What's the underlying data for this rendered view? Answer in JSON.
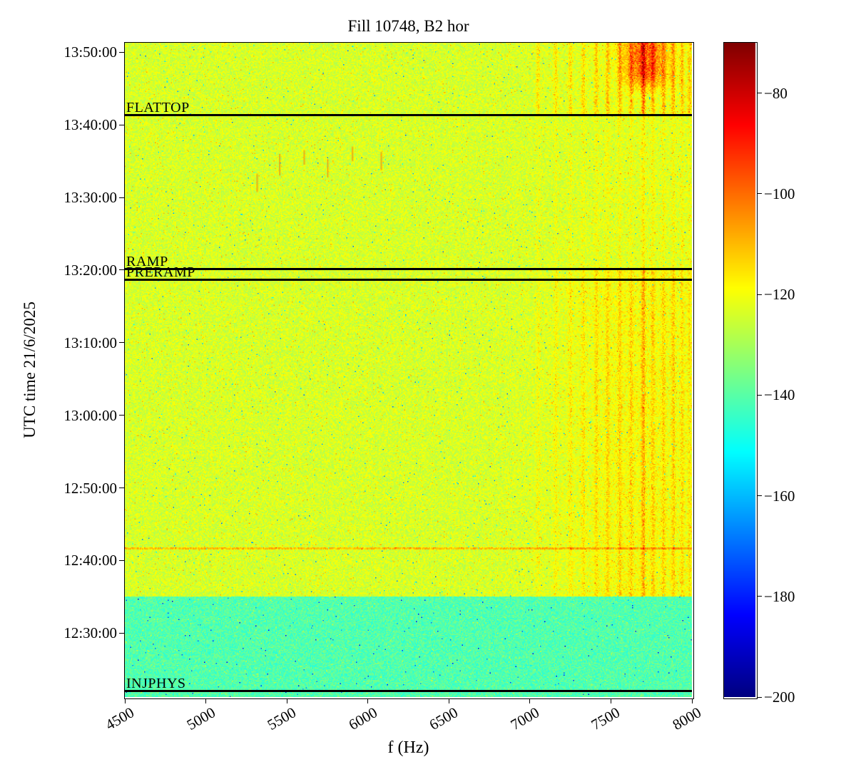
{
  "chart_data": {
    "type": "heatmap",
    "variant": "spectrogram",
    "title": "Fill 10748, B2 hor",
    "xlabel": "f (Hz)",
    "ylabel": "UTC time 21/6/2025",
    "x_range_hz": [
      4500,
      8000
    ],
    "x_ticks_hz": [
      4500,
      5000,
      5500,
      6000,
      6500,
      7000,
      7500,
      8000
    ],
    "time_top": "13:51:18",
    "time_bottom": "12:21:12",
    "y_ticks": [
      "13:50:00",
      "13:40:00",
      "13:30:00",
      "13:20:00",
      "13:10:00",
      "13:00:00",
      "12:50:00",
      "12:40:00",
      "12:30:00"
    ],
    "colorbar": {
      "colormap": "jet",
      "vmin": -200,
      "vmax": -70,
      "ticks": [
        -80,
        -100,
        -120,
        -140,
        -160,
        -180,
        -200
      ],
      "tick_labels": [
        "−80",
        "−100",
        "−120",
        "−140",
        "−160",
        "−180",
        "−200"
      ]
    },
    "beam_modes": [
      {
        "label": "FLATTOP",
        "time": "13:41:18"
      },
      {
        "label": "RAMP",
        "time": "13:20:06"
      },
      {
        "label": "PRERAMP",
        "time": "13:18:42"
      },
      {
        "label": "INJPHYS",
        "time": "12:22:00"
      }
    ],
    "background": {
      "main_level_db": -124,
      "injection_level_db": -141,
      "injection_until": "12:35:00",
      "noise_spread_db": 5.5
    },
    "features": {
      "horizontal_line": {
        "time": "12:41:42",
        "boost_db": 16
      },
      "broad_haze": {
        "center_hz": 7650,
        "sigma_hz": 330,
        "boost_db": 6
      },
      "hot_spot": {
        "center_hz": 7710,
        "sigma_hz": 95,
        "boost_db": 30,
        "after": "13:44:00"
      },
      "streak_sigma_hz": 9,
      "streaks_hz": [
        7050,
        7160,
        7250,
        7330,
        7410,
        7480,
        7555,
        7625,
        7700,
        7760,
        7825,
        7885,
        7940,
        7985
      ],
      "streak_boost_db": [
        7,
        8,
        9,
        10,
        11,
        12,
        13,
        12,
        22,
        14,
        13,
        15,
        12,
        11
      ],
      "band_factors": {
        "above_flattop": 1.5,
        "ramp_to_flattop": 0.45,
        "mid": 0.85,
        "injection": 0
      },
      "blips": [
        {
          "hz": 5310,
          "time": "13:32:00",
          "span_min": 2.5
        },
        {
          "hz": 5450,
          "time": "13:34:30",
          "span_min": 3.0
        },
        {
          "hz": 5600,
          "time": "13:35:30",
          "span_min": 2.0
        },
        {
          "hz": 5750,
          "time": "13:34:00",
          "span_min": 2.5
        },
        {
          "hz": 5900,
          "time": "13:36:00",
          "span_min": 2.0
        },
        {
          "hz": 6080,
          "time": "13:35:00",
          "span_min": 2.5
        }
      ]
    }
  }
}
